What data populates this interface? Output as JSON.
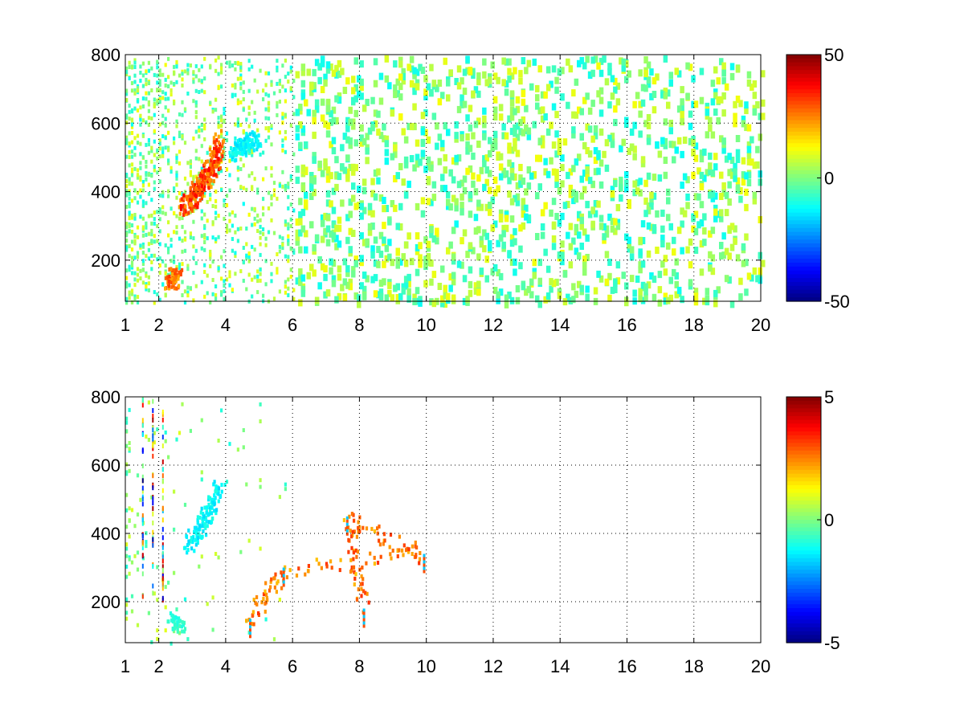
{
  "chart_data": [
    {
      "type": "heatmap",
      "title": "",
      "xlabel": "",
      "ylabel": "",
      "xlim": [
        1,
        20
      ],
      "ylim": [
        80,
        800
      ],
      "x_ticks": [
        "1",
        "2",
        "4",
        "6",
        "8",
        "10",
        "12",
        "14",
        "16",
        "18",
        "20"
      ],
      "x_tick_values": [
        1,
        2,
        4,
        6,
        8,
        10,
        12,
        14,
        16,
        18,
        20
      ],
      "y_ticks": [
        "200",
        "400",
        "600",
        "800"
      ],
      "y_tick_values": [
        200,
        400,
        600,
        800
      ],
      "grid": true,
      "colormap": "jet",
      "colorbar": {
        "min": -50,
        "max": 50,
        "ticks": [
          "50",
          "0",
          "-50"
        ],
        "tick_values": [
          50,
          0,
          -50
        ]
      },
      "features": [
        {
          "desc": "strong positive ridge",
          "points": [
            [
              2.7,
              360
            ],
            [
              3.0,
              390
            ],
            [
              3.3,
              430
            ],
            [
              3.6,
              480
            ],
            [
              3.8,
              560
            ]
          ],
          "value": 35
        },
        {
          "desc": "negative lobe",
          "points": [
            [
              4.2,
              520
            ],
            [
              4.6,
              540
            ],
            [
              4.9,
              560
            ]
          ],
          "value": -15
        },
        {
          "desc": "low-y positive patch",
          "points": [
            [
              2.3,
              130
            ],
            [
              2.5,
              170
            ]
          ],
          "value": 30
        }
      ],
      "background_value_range": [
        -12,
        12
      ]
    },
    {
      "type": "heatmap",
      "title": "",
      "xlabel": "",
      "ylabel": "",
      "xlim": [
        1,
        20
      ],
      "ylim": [
        80,
        800
      ],
      "x_ticks": [
        "1",
        "2",
        "4",
        "6",
        "8",
        "10",
        "12",
        "14",
        "16",
        "18",
        "20"
      ],
      "x_tick_values": [
        1,
        2,
        4,
        6,
        8,
        10,
        12,
        14,
        16,
        18,
        20
      ],
      "y_ticks": [
        "200",
        "400",
        "600",
        "800"
      ],
      "y_tick_values": [
        200,
        400,
        600,
        800
      ],
      "grid": true,
      "colormap": "jet",
      "colorbar": {
        "min": -5,
        "max": 5,
        "ticks": [
          "5",
          "0",
          "-5"
        ],
        "tick_values": [
          5,
          0,
          -5
        ]
      },
      "features": [
        {
          "desc": "weak negative ridge",
          "points": [
            [
              2.9,
              370
            ],
            [
              3.2,
              420
            ],
            [
              3.5,
              480
            ],
            [
              3.8,
              540
            ]
          ],
          "value": -1.5
        },
        {
          "desc": "low-y patch",
          "points": [
            [
              2.4,
              150
            ],
            [
              2.6,
              130
            ]
          ],
          "value": -1
        },
        {
          "desc": "isolated spikes",
          "points": [
            [
              4.7,
              150
            ],
            [
              5.7,
              300
            ],
            [
              9.9,
              340
            ],
            [
              7.6,
              450
            ],
            [
              8.1,
              180
            ]
          ],
          "value": 3
        }
      ],
      "background_value_range": [
        -1,
        1
      ]
    }
  ]
}
